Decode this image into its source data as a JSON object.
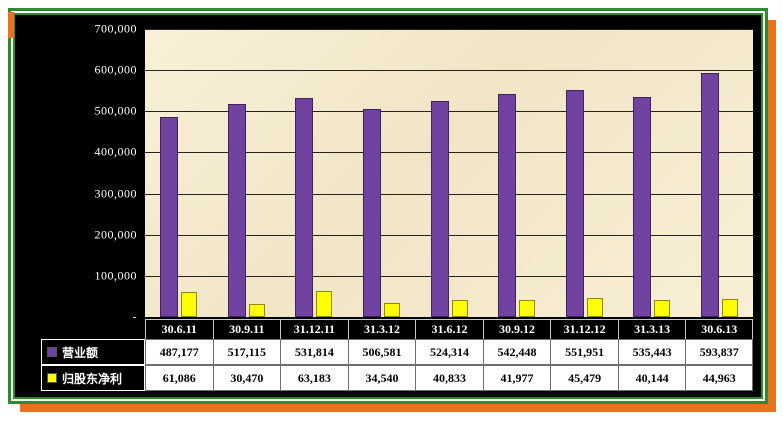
{
  "chart_data": {
    "type": "bar",
    "title": "",
    "xlabel": "",
    "ylabel": "",
    "ylim": [
      0,
      700000
    ],
    "grid": true,
    "legend_position": "data-table-left",
    "y_ticks": [
      "700,000",
      "600,000",
      "500,000",
      "400,000",
      "300,000",
      "200,000",
      "100,000",
      "-"
    ],
    "categories": [
      "30.6.11",
      "30.9.11",
      "31.12.11",
      "31.3.12",
      "31.6.12",
      "30.9.12",
      "31.12.12",
      "31.3.13",
      "30.6.13"
    ],
    "series": [
      {
        "name": "营业额",
        "color": "#7143a1",
        "values": [
          487177,
          517115,
          531814,
          506581,
          524314,
          542448,
          551951,
          535443,
          593837
        ],
        "values_formatted": [
          "487,177",
          "517,115",
          "531,814",
          "506,581",
          "524,314",
          "542,448",
          "551,951",
          "535,443",
          "593,837"
        ]
      },
      {
        "name": "归股东净利",
        "color": "#ffff00",
        "values": [
          61086,
          30470,
          63183,
          34540,
          40833,
          41977,
          45479,
          40144,
          44963
        ],
        "values_formatted": [
          "61,086",
          "30,470",
          "63,183",
          "34,540",
          "40,833",
          "41,977",
          "45,479",
          "40,144",
          "44,963"
        ]
      }
    ]
  },
  "colors": {
    "frame_green": "#2e8b2e",
    "frame_orange": "#e8731c",
    "chart_background": "#000000",
    "plot_background": "#f5ebd0",
    "bar_revenue": "#7143a1",
    "bar_net_profit": "#ffff00",
    "axis_text": "#ffffff"
  }
}
